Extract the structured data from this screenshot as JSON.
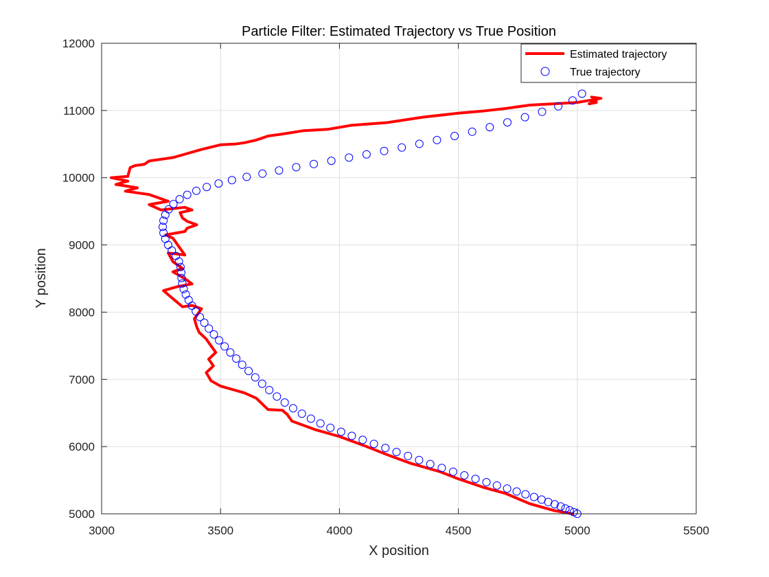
{
  "chart_data": {
    "type": "line",
    "title": "Particle Filter: Estimated Trajectory vs True Position",
    "xlabel": "X position",
    "ylabel": "Y position",
    "xlim": [
      3000,
      5500
    ],
    "ylim": [
      5000,
      12000
    ],
    "xticks": [
      3000,
      3500,
      4000,
      4500,
      5000,
      5500
    ],
    "xtick_labels": [
      "3000",
      "3500",
      "4000",
      "4500",
      "5000",
      "5500"
    ],
    "yticks": [
      5000,
      6000,
      7000,
      8000,
      9000,
      10000,
      11000,
      12000
    ],
    "ytick_labels": [
      "5000",
      "6000",
      "7000",
      "8000",
      "9000",
      "10000",
      "11000",
      "12000"
    ],
    "grid": true,
    "legend_position": "top-right",
    "series": [
      {
        "name": "Estimated trajectory",
        "style": "line",
        "color": "#ff0000",
        "x": [
          4980,
          4900,
          4800,
          4700,
          4600,
          4500,
          4420,
          4300,
          4200,
          4100,
          4000,
          3950,
          3900,
          3800,
          3780,
          3760,
          3700,
          3650,
          3600,
          3550,
          3500,
          3460,
          3440,
          3470,
          3450,
          3480,
          3460,
          3440,
          3410,
          3400,
          3390,
          3420,
          3380,
          3340,
          3300,
          3260,
          3320,
          3380,
          3350,
          3300,
          3340,
          3300,
          3280,
          3350,
          3330,
          3300,
          3270,
          3350,
          3360,
          3400,
          3360,
          3340,
          3330,
          3380,
          3350,
          3250,
          3200,
          3280,
          3200,
          3100,
          3150,
          3060,
          3110,
          3040,
          3110,
          3120,
          3140,
          3180,
          3200,
          3300,
          3350,
          3420,
          3500,
          3560,
          3600,
          3650,
          3700,
          3760,
          3850,
          3950,
          4050,
          4200,
          4350,
          4500,
          4600,
          4700,
          4800,
          4900,
          5000,
          5050,
          5100,
          5060,
          5080,
          5050,
          5080
        ],
        "y": [
          5000,
          5050,
          5150,
          5300,
          5400,
          5520,
          5630,
          5750,
          5880,
          6020,
          6150,
          6200,
          6250,
          6380,
          6480,
          6540,
          6550,
          6720,
          6800,
          6850,
          6900,
          6980,
          7100,
          7200,
          7300,
          7400,
          7500,
          7600,
          7700,
          7780,
          7900,
          8050,
          8100,
          8080,
          8200,
          8320,
          8380,
          8420,
          8500,
          8600,
          8650,
          8750,
          8880,
          8850,
          8950,
          9100,
          9150,
          9200,
          9250,
          9300,
          9350,
          9400,
          9480,
          9520,
          9560,
          9520,
          9600,
          9650,
          9750,
          9800,
          9850,
          9900,
          9950,
          10000,
          10020,
          10150,
          10180,
          10200,
          10250,
          10300,
          10350,
          10420,
          10490,
          10500,
          10520,
          10560,
          10620,
          10650,
          10700,
          10720,
          10780,
          10820,
          10900,
          10960,
          10990,
          11030,
          11080,
          11100,
          11120,
          11150,
          11180,
          11200,
          11150,
          11100,
          11120
        ]
      },
      {
        "name": "True trajectory",
        "style": "markers",
        "marker": "circle",
        "color": "#0000ff",
        "x": [
          5000,
          4985,
          4968,
          4950,
          4930,
          4905,
          4878,
          4850,
          4818,
          4782,
          4745,
          4705,
          4662,
          4618,
          4572,
          4525,
          4478,
          4430,
          4382,
          4335,
          4288,
          4240,
          4193,
          4145,
          4098,
          4052,
          4007,
          3962,
          3920,
          3880,
          3842,
          3805,
          3770,
          3737,
          3705,
          3675,
          3646,
          3618,
          3591,
          3566,
          3541,
          3517,
          3494,
          3472,
          3451,
          3432,
          3413,
          3396,
          3380,
          3366,
          3354,
          3345,
          3339,
          3336,
          3335,
          3332,
          3325,
          3312,
          3295,
          3280,
          3268,
          3260,
          3257,
          3260,
          3268,
          3282,
          3302,
          3328,
          3360,
          3398,
          3442,
          3492,
          3548,
          3610,
          3676,
          3746,
          3818,
          3892,
          3966,
          4040,
          4114,
          4188,
          4262,
          4336,
          4410,
          4484,
          4558,
          4632,
          4706,
          4780,
          4852,
          4920,
          4980,
          5020
        ],
        "y": [
          5000,
          5025,
          5052,
          5080,
          5110,
          5142,
          5176,
          5212,
          5250,
          5290,
          5332,
          5376,
          5422,
          5470,
          5520,
          5572,
          5626,
          5682,
          5740,
          5800,
          5860,
          5920,
          5980,
          6040,
          6100,
          6160,
          6220,
          6280,
          6345,
          6415,
          6490,
          6570,
          6655,
          6745,
          6840,
          6935,
          7030,
          7125,
          7218,
          7310,
          7400,
          7490,
          7580,
          7668,
          7756,
          7842,
          7928,
          8012,
          8096,
          8180,
          8262,
          8344,
          8426,
          8508,
          8590,
          8672,
          8754,
          8836,
          8918,
          9000,
          9090,
          9180,
          9270,
          9360,
          9448,
          9530,
          9608,
          9680,
          9746,
          9806,
          9862,
          9914,
          9964,
          10012,
          10060,
          10108,
          10156,
          10204,
          10252,
          10300,
          10348,
          10398,
          10450,
          10504,
          10560,
          10620,
          10684,
          10752,
          10824,
          10900,
          10980,
          11062,
          11150,
          11250
        ]
      }
    ]
  }
}
